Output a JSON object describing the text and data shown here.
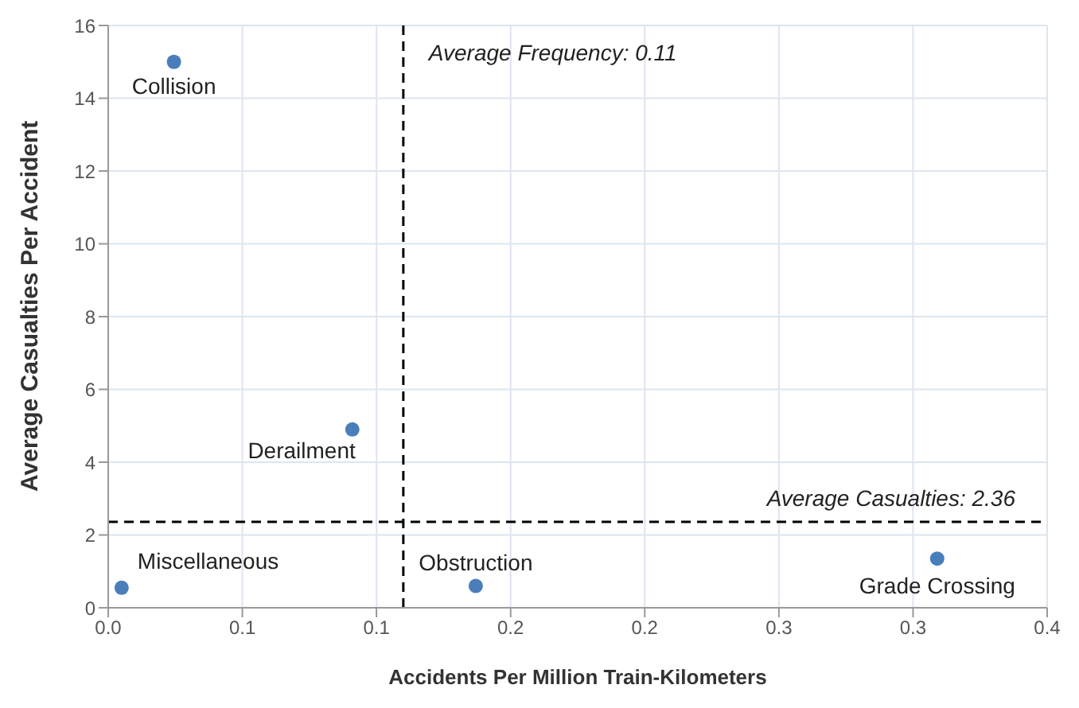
{
  "chart_data": {
    "type": "scatter",
    "xlabel": "Accidents Per Million Train-Kilometers",
    "ylabel": "Average Casualties Per Accident",
    "x": [
      0.0245,
      0.091,
      0.005,
      0.137,
      0.309
    ],
    "values": [
      15.0,
      4.9,
      0.55,
      0.6,
      1.35
    ],
    "color": "#4a7ebb",
    "marker": "circle",
    "xlim": [
      0,
      0.35
    ],
    "xticks": [
      {
        "value": 0,
        "label": "0.0"
      },
      {
        "value": 0.05,
        "label": "0.1"
      },
      {
        "value": 0.1,
        "label": "0.1"
      },
      {
        "value": 0.15,
        "label": "0.2"
      },
      {
        "value": 0.2,
        "label": "0.2"
      },
      {
        "value": 0.25,
        "label": "0.3"
      },
      {
        "value": 0.3,
        "label": "0.3"
      },
      {
        "value": 0.35,
        "label": "0.4"
      }
    ],
    "ylim": [
      0,
      16
    ],
    "yticks": [
      0,
      2,
      4,
      6,
      8,
      10,
      12,
      14,
      16
    ],
    "grid": true,
    "legend": false,
    "ref_lines": [
      {
        "axis": "x",
        "value": 0.11,
        "label": "Average Frequency: 0.11",
        "line_style": "dashed",
        "color": "#000000"
      },
      {
        "axis": "y",
        "value": 2.36,
        "label": "Average Casualties: 2.36",
        "line_style": "dashed",
        "color": "#000000"
      }
    ],
    "annotations": [
      {
        "text": "Collision",
        "x": 0.0245,
        "y": 15.0
      },
      {
        "text": "Derailment",
        "x": 0.091,
        "y": 4.9
      },
      {
        "text": "Miscellaneous",
        "x": 0.005,
        "y": 0.55
      },
      {
        "text": "Obstruction",
        "x": 0.137,
        "y": 0.6
      },
      {
        "text": "Grade Crossing",
        "x": 0.309,
        "y": 1.35
      }
    ]
  }
}
